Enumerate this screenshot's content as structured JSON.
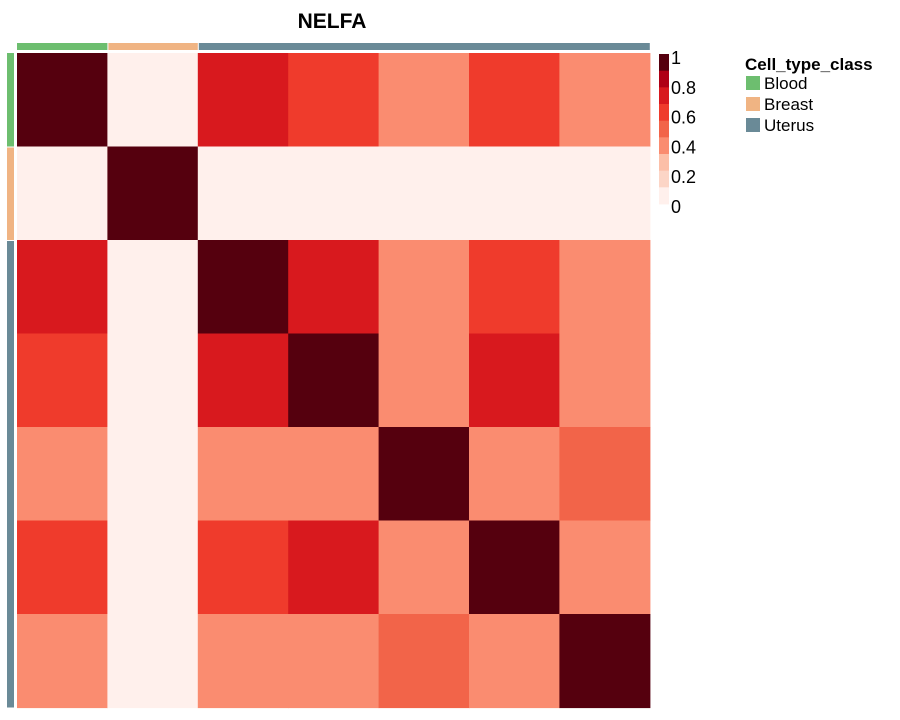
{
  "chart_data": {
    "type": "heatmap",
    "title": "NELFA",
    "values": [
      [
        1.0,
        0.0,
        0.75,
        0.62,
        0.38,
        0.62,
        0.38
      ],
      [
        0.0,
        1.0,
        0.0,
        0.0,
        0.0,
        0.0,
        0.0
      ],
      [
        0.75,
        0.0,
        1.0,
        0.75,
        0.38,
        0.62,
        0.38
      ],
      [
        0.62,
        0.0,
        0.75,
        1.0,
        0.45,
        0.75,
        0.38
      ],
      [
        0.38,
        0.0,
        0.38,
        0.45,
        1.0,
        0.45,
        0.55
      ],
      [
        0.62,
        0.0,
        0.62,
        0.75,
        0.45,
        1.0,
        0.45
      ],
      [
        0.38,
        0.0,
        0.38,
        0.38,
        0.55,
        0.45,
        1.0
      ]
    ],
    "annotation": {
      "title": "Cell_type_class",
      "classes": [
        {
          "name": "Blood",
          "color": "#6DBE6F"
        },
        {
          "name": "Breast",
          "color": "#F0B483"
        },
        {
          "name": "Uterus",
          "color": "#6A8A97"
        }
      ],
      "assignments": [
        "Blood",
        "Breast",
        "Uterus",
        "Uterus",
        "Uterus",
        "Uterus",
        "Uterus"
      ]
    },
    "color_scale": {
      "range": [
        0,
        1
      ],
      "ticks": [
        "1",
        "0.8",
        "0.6",
        "0.4",
        "0.2",
        "0"
      ],
      "bins": [
        {
          "max": 1.0,
          "color": "#FFF0EC"
        },
        {
          "max": 0.2,
          "color": "#FCD5C6"
        },
        {
          "max": 0.35,
          "color": "#FCBFA8"
        },
        {
          "max": 0.5,
          "color": "#FA8C70"
        },
        {
          "max": 0.6,
          "color": "#F26449"
        },
        {
          "max": 0.7,
          "color": "#EF3B2C"
        },
        {
          "max": 0.8,
          "color": "#D8191E"
        },
        {
          "max": 0.9,
          "color": "#AF0015"
        },
        {
          "max": 1.01,
          "color": "#55000E"
        }
      ]
    }
  }
}
